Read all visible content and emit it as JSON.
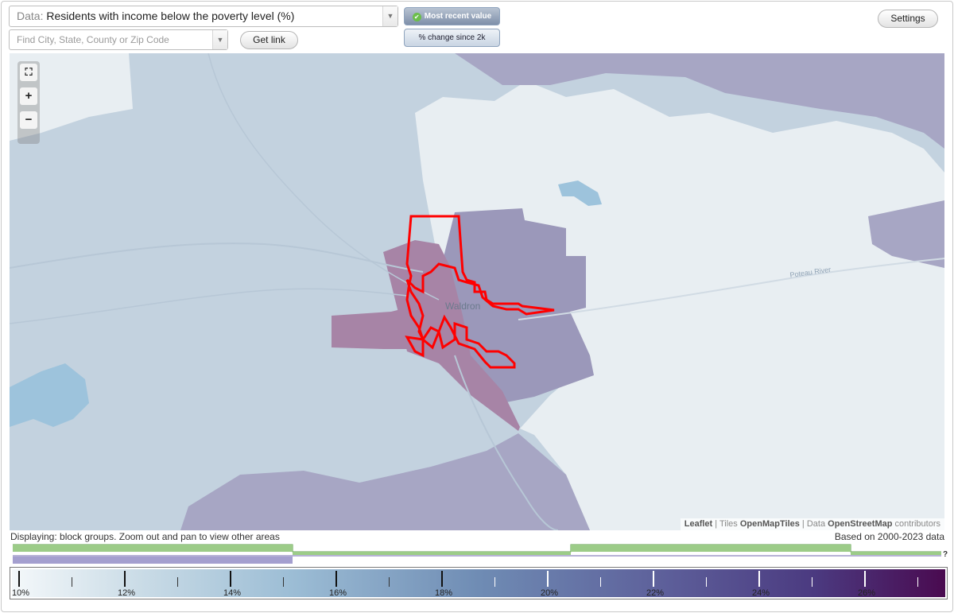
{
  "controls": {
    "data_prefix": "Data:",
    "data_selected": "Residents with income below the poverty level (%)",
    "search_placeholder": "Find City, State, County or Zip Code",
    "get_link_label": "Get link",
    "most_recent_label": "Most recent value",
    "change_label": "% change since 2k",
    "settings_label": "Settings"
  },
  "map": {
    "city_label": "Waldron",
    "river_label": "Poteau River",
    "zoom_in_symbol": "+",
    "zoom_out_symbol": "−",
    "fullscreen_icon": "fullscreen-icon",
    "attribution": {
      "leaflet": "Leaflet",
      "sep": "|",
      "tiles_prefix": "Tiles",
      "tiles": "OpenMapTiles",
      "data_prefix": "Data",
      "data": "OpenStreetMap",
      "suffix": "contributors"
    },
    "colors": {
      "water": "#9dc3dc",
      "low": "#e8eef2",
      "mid": "#c3d2df",
      "high": "#a7a6c4",
      "higher": "#9b98ba",
      "highest": "#a784a6",
      "highlight": "#ff0000"
    }
  },
  "status": {
    "displaying": "Displaying: block groups. Zoom out and pan to view other areas",
    "based_on": "Based on 2000-2023 data",
    "help_mark": "?"
  },
  "legend": {
    "tick_labels": [
      "10%",
      "12%",
      "14%",
      "16%",
      "18%",
      "20%",
      "22%",
      "24%",
      "26%"
    ]
  }
}
